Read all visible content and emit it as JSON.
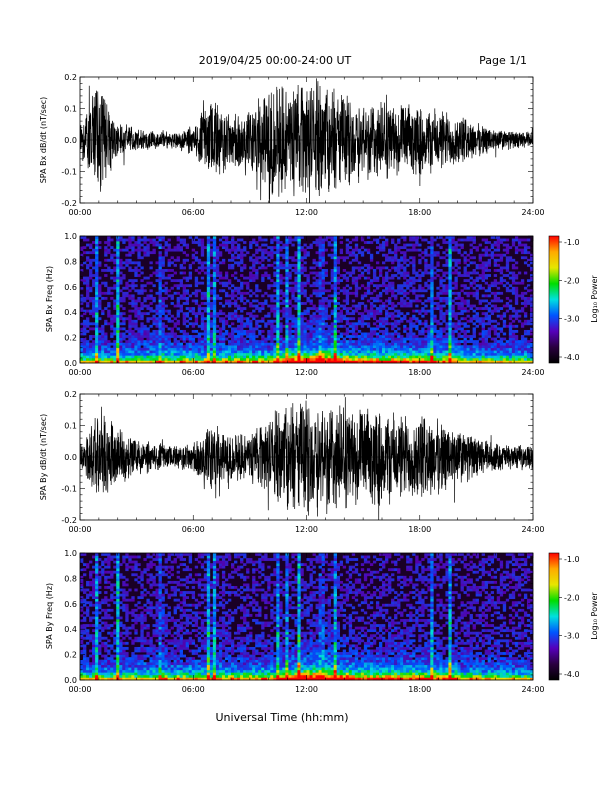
{
  "header": {
    "title": "2019/04/25  00:00-24:00 UT",
    "page": "Page 1/1"
  },
  "footer": {
    "xlabel": "Universal Time (hh:mm)"
  },
  "colorbar": {
    "ticks": [
      "-1.0",
      "-2.0",
      "-3.0",
      "-4.0"
    ],
    "label": "Log₁₀ Power",
    "colors": [
      "#ff0000",
      "#ffaa00",
      "#e6e600",
      "#00dd00",
      "#00e0e0",
      "#0055ff",
      "#5500bb",
      "#2a0040",
      "#000000"
    ]
  },
  "chart_data": [
    {
      "type": "line",
      "ylabel": "SPA Bx dB/dt (nT/sec)",
      "xticks": [
        "00:00",
        "06:00",
        "12:00",
        "18:00",
        "24:00"
      ],
      "yticks": [
        "0.2",
        "0.1",
        "0.0",
        "-0.1",
        "-0.2"
      ],
      "xlim_hours": [
        0,
        24
      ],
      "ylim": [
        -0.2,
        0.2
      ],
      "series": [
        {
          "hour": [
            0,
            0.5,
            1,
            1.5,
            2,
            3,
            4,
            5,
            6,
            7,
            7.5,
            8,
            9,
            10,
            10.5,
            11,
            11.5,
            12,
            12.5,
            13,
            13.5,
            14,
            15,
            16,
            17,
            18,
            19,
            20,
            21,
            22,
            23,
            24
          ],
          "amplitude": [
            0.06,
            0.12,
            0.2,
            0.12,
            0.07,
            0.04,
            0.03,
            0.03,
            0.05,
            0.15,
            0.12,
            0.09,
            0.12,
            0.2,
            0.2,
            0.2,
            0.2,
            0.2,
            0.2,
            0.2,
            0.19,
            0.16,
            0.14,
            0.14,
            0.12,
            0.12,
            0.11,
            0.09,
            0.06,
            0.04,
            0.03,
            0.03
          ]
        }
      ]
    },
    {
      "type": "heatmap",
      "ylabel": "SPA Bx Freq (Hz)",
      "xticks": [
        "00:00",
        "06:00",
        "12:00",
        "18:00",
        "24:00"
      ],
      "yticks": [
        "1.0",
        "0.8",
        "0.6",
        "0.4",
        "0.2",
        "0.0"
      ],
      "xlim_hours": [
        0,
        24
      ],
      "ylim_hz": [
        0,
        1.0
      ],
      "color_scale": "log10 power, -4.0 to -1.0",
      "vertical_streaks_hours": [
        0.9,
        2.0,
        4.3,
        6.8,
        7.1,
        10.5,
        11.0,
        11.6,
        12.8,
        13.5,
        18.6,
        19.6
      ],
      "strongest_activity_hours": [
        10.5,
        14.5
      ]
    },
    {
      "type": "line",
      "ylabel": "SPA By dB/dt (nT/sec)",
      "xticks": [
        "00:00",
        "06:00",
        "12:00",
        "18:00",
        "24:00"
      ],
      "yticks": [
        "0.2",
        "0.1",
        "0.0",
        "-0.1",
        "-0.2"
      ],
      "xlim_hours": [
        0,
        24
      ],
      "ylim": [
        -0.2,
        0.2
      ],
      "series": [
        {
          "hour": [
            0,
            0.5,
            1,
            1.5,
            2,
            3,
            4,
            5,
            6,
            7,
            7.5,
            8,
            9,
            10,
            10.5,
            11,
            11.5,
            12,
            12.5,
            13,
            13.5,
            14,
            15,
            16,
            17,
            18,
            19,
            20,
            21,
            22,
            23,
            24
          ],
          "amplitude": [
            0.04,
            0.1,
            0.16,
            0.12,
            0.1,
            0.06,
            0.05,
            0.04,
            0.05,
            0.14,
            0.1,
            0.08,
            0.09,
            0.13,
            0.16,
            0.2,
            0.2,
            0.2,
            0.2,
            0.2,
            0.2,
            0.18,
            0.16,
            0.17,
            0.15,
            0.15,
            0.13,
            0.1,
            0.07,
            0.05,
            0.04,
            0.04
          ]
        }
      ]
    },
    {
      "type": "heatmap",
      "ylabel": "SPA By Freq (Hz)",
      "xticks": [
        "00:00",
        "06:00",
        "12:00",
        "18:00",
        "24:00"
      ],
      "yticks": [
        "1.0",
        "0.8",
        "0.6",
        "0.4",
        "0.2",
        "0.0"
      ],
      "xlim_hours": [
        0,
        24
      ],
      "ylim_hz": [
        0,
        1.0
      ],
      "color_scale": "log10 power, -4.0 to -1.0",
      "vertical_streaks_hours": [
        0.9,
        2.0,
        4.3,
        6.8,
        7.1,
        10.5,
        11.0,
        11.6,
        12.8,
        13.5,
        18.6,
        19.6
      ],
      "strongest_activity_hours": [
        10.5,
        14.5
      ]
    }
  ]
}
